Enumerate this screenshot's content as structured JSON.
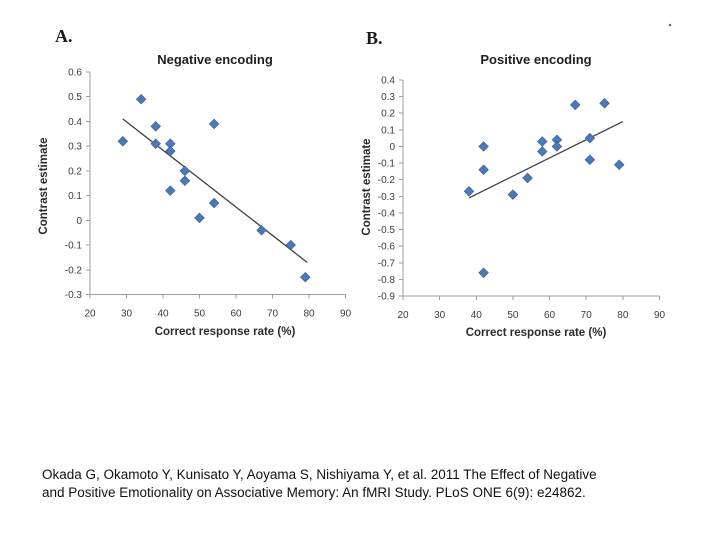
{
  "figure": {
    "panels": [
      {
        "label": "A."
      },
      {
        "label": "B."
      }
    ]
  },
  "chart_data": [
    {
      "type": "scatter",
      "panel": "A",
      "title": "Negative encoding",
      "xlabel": "Correct response rate (%)",
      "ylabel": "Contrast estimate",
      "xlim": [
        20,
        90
      ],
      "ylim": [
        -0.3,
        0.6
      ],
      "xticks": [
        "20",
        "30",
        "40",
        "50",
        "60",
        "70",
        "80",
        "90"
      ],
      "yticks": [
        "0.6",
        "0.5",
        "0.4",
        "0.3",
        "0.2",
        "0.1",
        "0",
        "-0.1",
        "-0.2",
        "-0.3"
      ],
      "points": [
        [
          29,
          0.32
        ],
        [
          34,
          0.49
        ],
        [
          38,
          0.38
        ],
        [
          38,
          0.31
        ],
        [
          42,
          0.31
        ],
        [
          42,
          0.28
        ],
        [
          42,
          0.12
        ],
        [
          46,
          0.2
        ],
        [
          46,
          0.16
        ],
        [
          50,
          0.01
        ],
        [
          54,
          0.39
        ],
        [
          54,
          0.07
        ],
        [
          67,
          -0.04
        ],
        [
          75,
          -0.1
        ],
        [
          79,
          -0.23
        ]
      ],
      "trendline": {
        "x_start": 29,
        "y_start": 0.41,
        "x_end": 79.5,
        "y_end": -0.17
      },
      "grid": false,
      "legend": null,
      "marker_color": "#4b79b7",
      "marker_edge_color": "#37598c",
      "trend_color": "#3f3f3f",
      "axis_color": "#9e9e9e"
    },
    {
      "type": "scatter",
      "panel": "B",
      "title": "Positive encoding",
      "xlabel": "Correct response rate (%)",
      "ylabel": "Contrast estimate",
      "xlim": [
        20,
        90
      ],
      "ylim": [
        -0.9,
        0.4
      ],
      "xticks": [
        "20",
        "30",
        "40",
        "50",
        "60",
        "70",
        "80",
        "90"
      ],
      "yticks": [
        "0.4",
        "0.3",
        "0.2",
        "0.1",
        "0",
        "-0.1",
        "-0.2",
        "-0.3",
        "-0.4",
        "-0.5",
        "-0.6",
        "-0.7",
        "-0.8",
        "-0.9"
      ],
      "points": [
        [
          38,
          -0.27
        ],
        [
          42,
          0.0
        ],
        [
          42,
          -0.14
        ],
        [
          42,
          -0.76
        ],
        [
          50,
          -0.29
        ],
        [
          54,
          -0.19
        ],
        [
          58,
          0.03
        ],
        [
          58,
          -0.03
        ],
        [
          62,
          0.04
        ],
        [
          62,
          0.0
        ],
        [
          67,
          0.25
        ],
        [
          71,
          0.05
        ],
        [
          71,
          -0.08
        ],
        [
          75,
          0.26
        ],
        [
          79,
          -0.11
        ]
      ],
      "trendline": {
        "x_start": 38,
        "y_start": -0.31,
        "x_end": 80,
        "y_end": 0.15
      },
      "grid": false,
      "legend": null,
      "marker_color": "#4b79b7",
      "marker_edge_color": "#37598c",
      "trend_color": "#3f3f3f",
      "axis_color": "#9e9e9e"
    }
  ],
  "caption": {
    "lines": [
      "Okada G, Okamoto Y, Kunisato Y, Aoyama S, Nishiyama Y, et al. 2011 The Effect of Negative",
      "and Positive Emotionality on Associative Memory: An fMRI Study. PLoS ONE 6(9): e24862."
    ]
  }
}
